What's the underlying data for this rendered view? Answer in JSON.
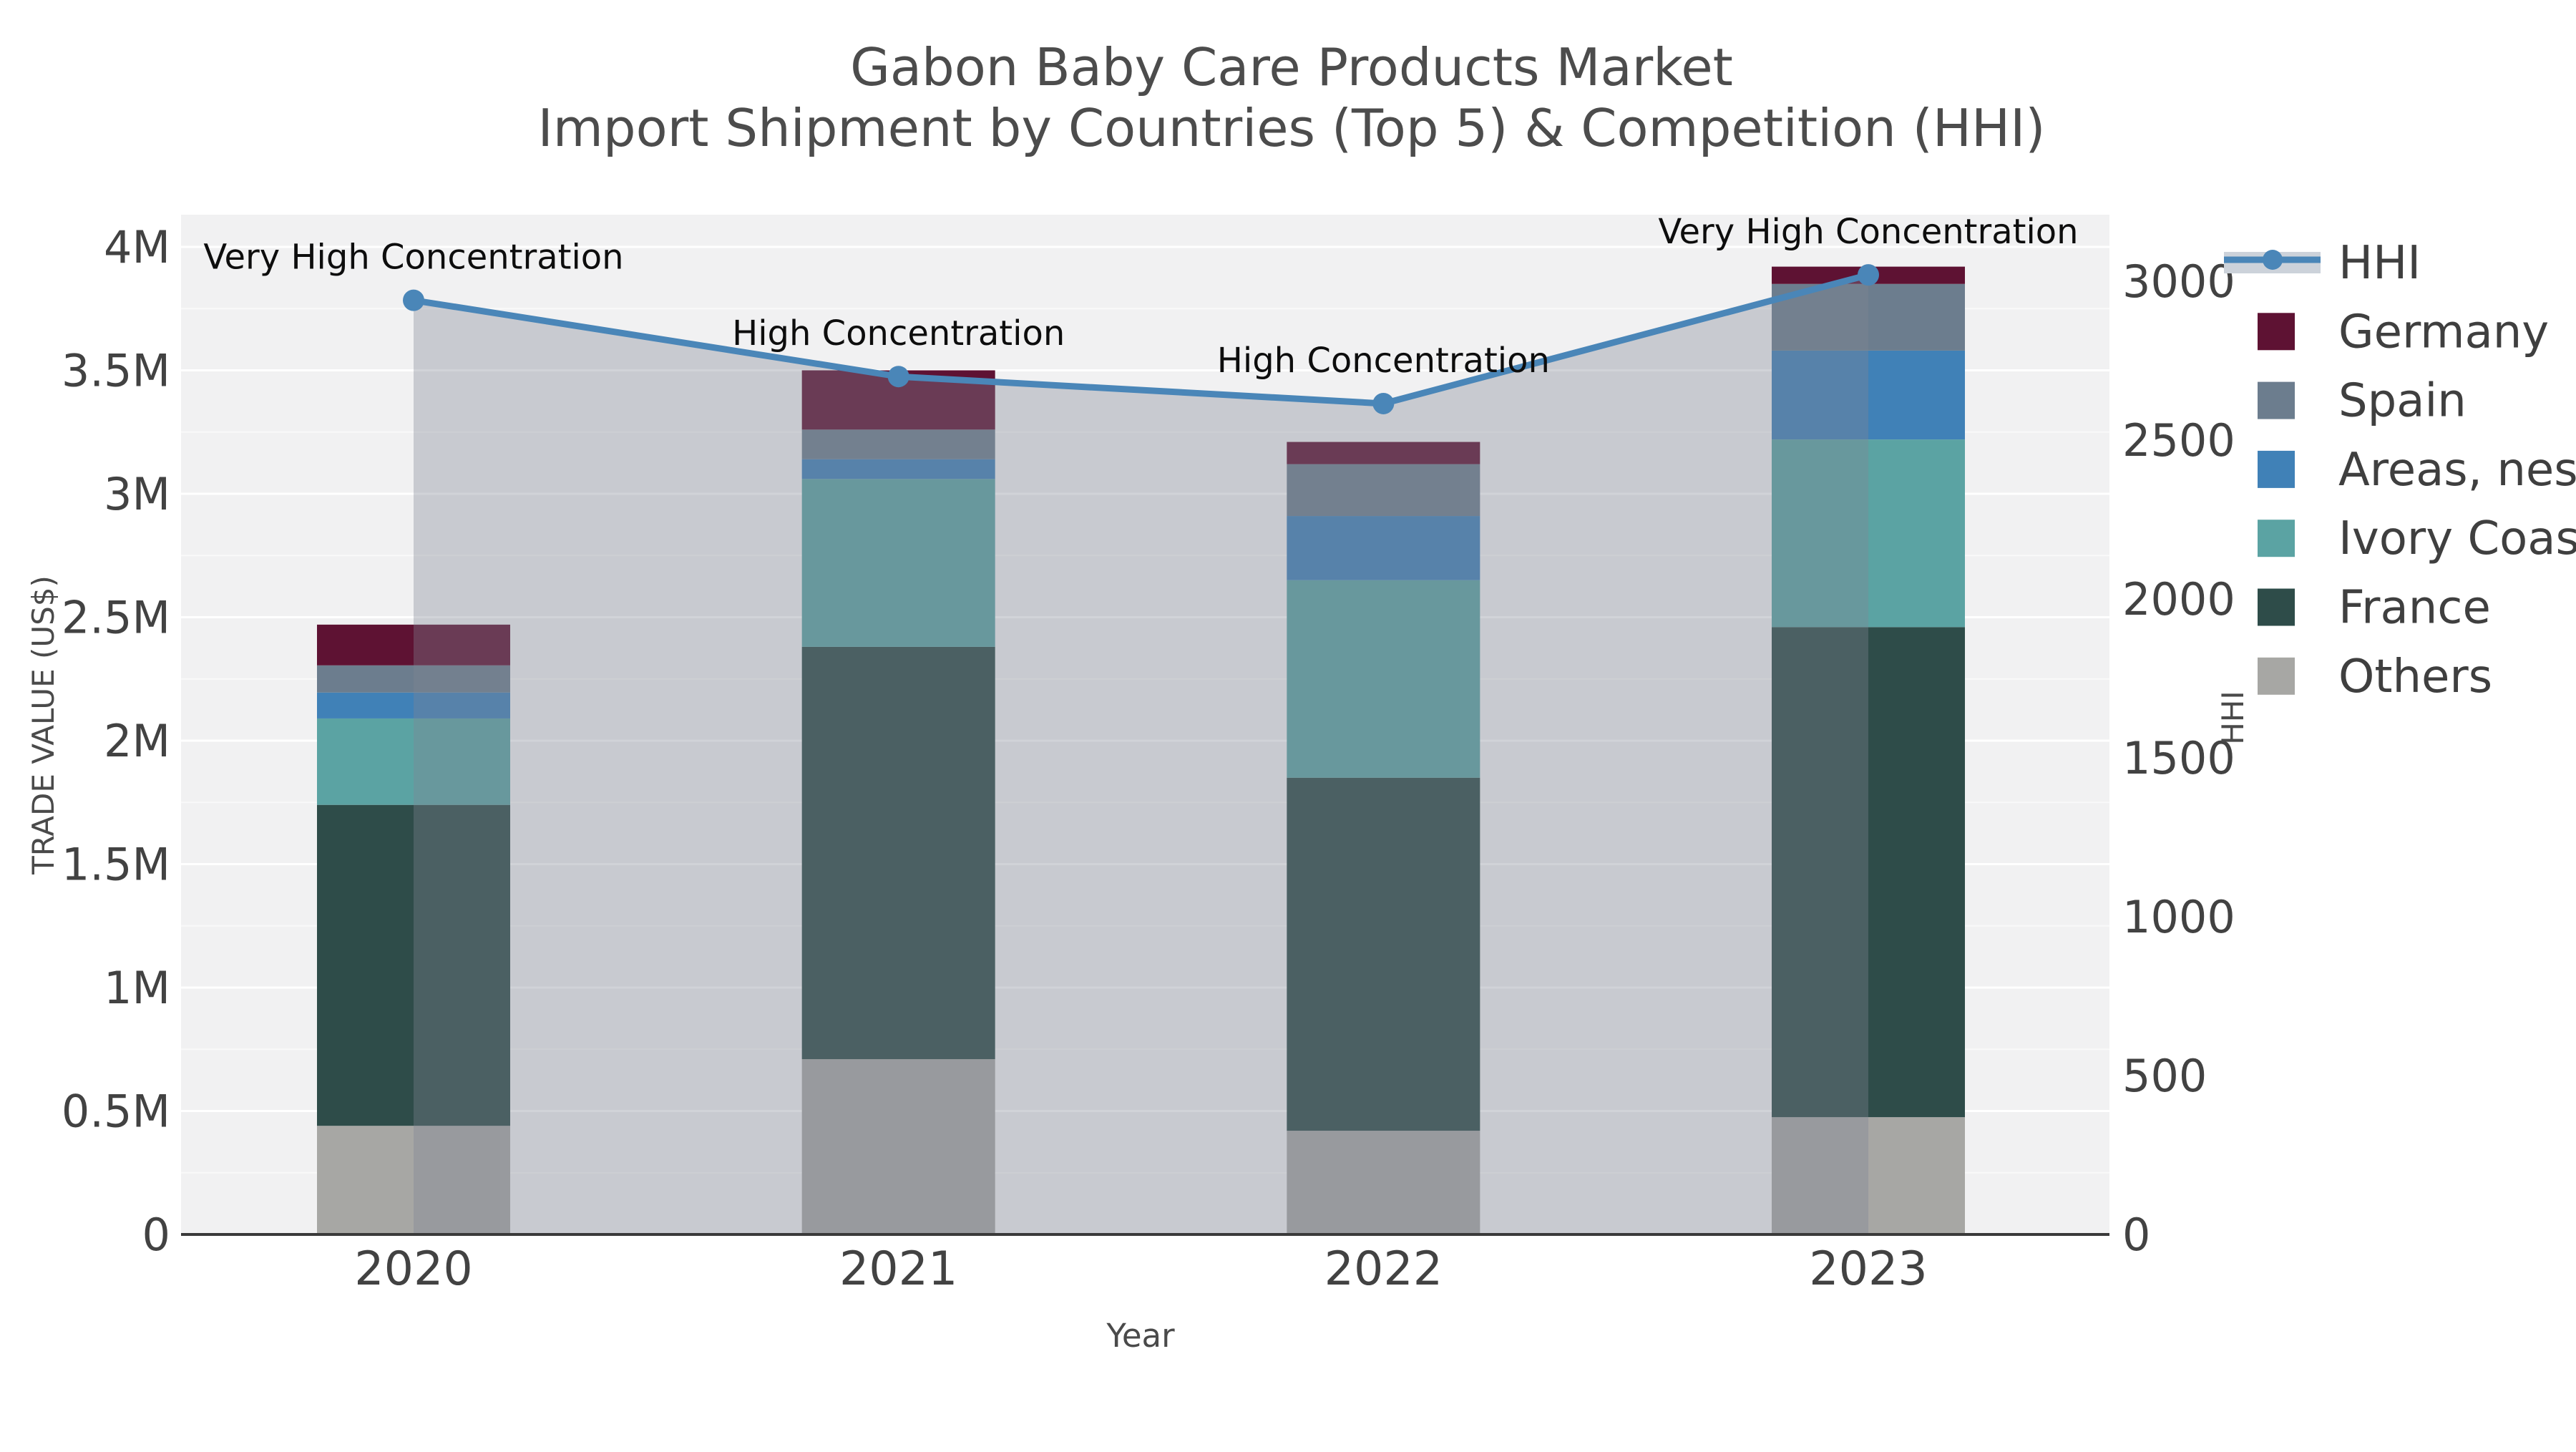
{
  "title": {
    "line1": "Gabon Baby Care Products Market",
    "line2": "Import Shipment by Countries (Top 5) & Competition (HHI)"
  },
  "chart_data": {
    "type": "bar",
    "subtype": "stacked-bars-with-line-overlay",
    "categories": [
      "2020",
      "2021",
      "2022",
      "2023"
    ],
    "bar_unit": "million US$",
    "series": [
      {
        "name": "Others",
        "color": "#a7a7a4",
        "values": [
          0.44,
          0.71,
          0.42,
          0.475
        ]
      },
      {
        "name": "France",
        "color": "#2e4c49",
        "values": [
          1.3,
          1.67,
          1.43,
          1.985
        ]
      },
      {
        "name": "Ivory Coast",
        "color": "#5ba3a3",
        "values": [
          0.35,
          0.68,
          0.8,
          0.76
        ]
      },
      {
        "name": "Areas, nes",
        "color": "#4081b7",
        "values": [
          0.105,
          0.08,
          0.26,
          0.36
        ]
      },
      {
        "name": "Spain",
        "color": "#6c7d8e",
        "values": [
          0.11,
          0.12,
          0.21,
          0.27
        ]
      },
      {
        "name": "Germany",
        "color": "#5e1233",
        "values": [
          0.165,
          0.24,
          0.09,
          0.07
        ]
      }
    ],
    "bar_totals_musd": [
      2.47,
      3.5,
      3.21,
      3.92
    ],
    "line_series": {
      "name": "HHI",
      "values": [
        2940,
        2700,
        2615,
        3020
      ],
      "line_color": "#4a86b8",
      "marker_color": "#4a86b8",
      "area_fill": "rgba(127,134,146,0.36)",
      "legend_band_color": "#ccd2da"
    },
    "annotations": [
      {
        "category": "2020",
        "text": "Very High Concentration"
      },
      {
        "category": "2021",
        "text": "High Concentration"
      },
      {
        "category": "2022",
        "text": "High Concentration"
      },
      {
        "category": "2023",
        "text": "Very High Concentration"
      }
    ],
    "xlabel": "Year",
    "ylabel_left": "TRADE VALUE (US$)",
    "ylabel_right": "HHI",
    "y_left_ticks": [
      "0",
      "0.5M",
      "1M",
      "1.5M",
      "2M",
      "2.5M",
      "3M",
      "3.5M",
      "4M"
    ],
    "y_left_tick_values_musd": [
      0,
      0.5,
      1,
      1.5,
      2,
      2.5,
      3,
      3.5,
      4
    ],
    "y_left_range_musd": [
      0,
      4.13
    ],
    "y_right_ticks": [
      "0",
      "500",
      "1000",
      "1500",
      "2000",
      "2500",
      "3000"
    ],
    "y_right_tick_values": [
      0,
      500,
      1000,
      1500,
      2000,
      2500,
      3000
    ],
    "y_right_range": [
      0,
      3209
    ],
    "grid": "major 0.5M white lines with faint 0.25M minor lines on light-gray panel",
    "legend_position": "outside right",
    "legend_items": [
      "HHI",
      "Germany",
      "Spain",
      "Areas, nes",
      "Ivory Coast",
      "France",
      "Others"
    ]
  },
  "colors": {
    "panel_bg": "#f1f1f2",
    "page_bg": "#ffffff",
    "spine": "#3a3a3a",
    "tick_text": "#424242",
    "title_text": "#4c4c4c",
    "axis_label_text": "#4a4a4a",
    "annotation_text": "#0d0d0d",
    "gridline_major": "#ffffff"
  }
}
